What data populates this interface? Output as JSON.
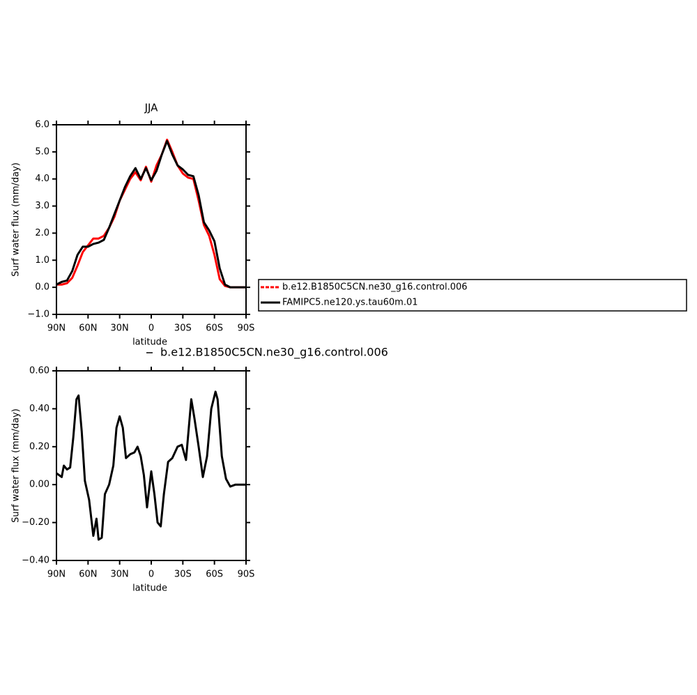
{
  "chart_data": [
    {
      "type": "line",
      "title": "JJA",
      "ylabel": "Surf water flux (mm/day)",
      "xlabel": "latitude",
      "xlim": [
        90,
        -90
      ],
      "xticks": [
        {
          "value": 90,
          "label": "90N"
        },
        {
          "value": 60,
          "label": "60N"
        },
        {
          "value": 30,
          "label": "30N"
        },
        0,
        {
          "value": -30,
          "label": "30S"
        },
        {
          "value": -60,
          "label": "60S"
        },
        {
          "value": -90,
          "label": "90S"
        }
      ],
      "ylim": [
        -1,
        6
      ],
      "yticks": [
        {
          "value": -1,
          "label": "−1.0"
        },
        {
          "value": 0,
          "label": "0.0"
        },
        {
          "value": 1,
          "label": "1.0"
        },
        {
          "value": 2,
          "label": "2.0"
        },
        {
          "value": 3,
          "label": "3.0"
        },
        {
          "value": 4,
          "label": "4.0"
        },
        {
          "value": 5,
          "label": "5.0"
        },
        {
          "value": 6,
          "label": "6.0"
        }
      ],
      "legend": "right",
      "x": [
        90,
        85,
        80,
        75,
        70,
        65,
        60,
        55,
        50,
        45,
        40,
        35,
        30,
        25,
        20,
        15,
        10,
        5,
        0,
        -5,
        -10,
        -15,
        -20,
        -25,
        -30,
        -35,
        -40,
        -45,
        -50,
        -55,
        -60,
        -65,
        -70,
        -75,
        -80,
        -85,
        -90
      ],
      "series": [
        {
          "name": "b.e12.B1850C5CN.ne30_g16.control.006",
          "color": "#ff0000",
          "values": [
            0.1,
            0.1,
            0.15,
            0.35,
            0.8,
            1.3,
            1.55,
            1.8,
            1.8,
            1.9,
            2.2,
            2.6,
            3.2,
            3.6,
            4.0,
            4.25,
            3.95,
            4.45,
            3.9,
            4.5,
            4.9,
            5.45,
            5.0,
            4.5,
            4.2,
            4.05,
            4.0,
            3.2,
            2.3,
            1.9,
            1.2,
            0.3,
            0.05,
            0.0,
            0.0,
            0.0,
            0.0
          ]
        },
        {
          "name": "FAMIPC5.ne120.ys.tau60m.01",
          "color": "#000000",
          "values": [
            0.1,
            0.2,
            0.25,
            0.6,
            1.2,
            1.5,
            1.5,
            1.6,
            1.65,
            1.75,
            2.2,
            2.7,
            3.2,
            3.7,
            4.1,
            4.4,
            4.0,
            4.4,
            3.95,
            4.3,
            4.9,
            5.4,
            4.9,
            4.5,
            4.35,
            4.15,
            4.1,
            3.4,
            2.4,
            2.1,
            1.7,
            0.7,
            0.1,
            0.0,
            0.0,
            0.0,
            0.0
          ]
        }
      ]
    },
    {
      "type": "line",
      "title": "b.e12.B1850C5CN.ne30_g16.control.006",
      "ylabel": "Surf water flux (mm/day)",
      "xlabel": "latitude",
      "xlim": [
        90,
        -90
      ],
      "xticks": [
        {
          "value": 90,
          "label": "90N"
        },
        {
          "value": 60,
          "label": "60N"
        },
        {
          "value": 30,
          "label": "30N"
        },
        0,
        {
          "value": -30,
          "label": "30S"
        },
        {
          "value": -60,
          "label": "60S"
        },
        {
          "value": -90,
          "label": "90S"
        }
      ],
      "ylim": [
        -0.4,
        0.6
      ],
      "yticks": [
        {
          "value": -0.4,
          "label": "−0.40"
        },
        {
          "value": -0.2,
          "label": "−0.20"
        },
        {
          "value": 0,
          "label": "0.00"
        },
        {
          "value": 0.2,
          "label": "0.20"
        },
        {
          "value": 0.4,
          "label": "0.40"
        },
        {
          "value": 0.6,
          "label": "0.60"
        }
      ],
      "x": [
        90,
        85,
        83,
        80,
        77,
        74,
        71,
        69,
        66,
        63,
        59,
        55,
        52,
        50,
        47,
        44,
        40,
        36,
        33,
        30,
        27,
        24,
        20,
        16,
        13,
        10,
        7,
        4,
        0,
        -3,
        -6,
        -9,
        -12,
        -16,
        -20,
        -25,
        -29,
        -33,
        -38,
        -41,
        -45,
        -49,
        -53,
        -57,
        -61,
        -63,
        -67,
        -71,
        -75,
        -80,
        -90
      ],
      "series": [
        {
          "color": "#000000",
          "values": [
            0.06,
            0.04,
            0.1,
            0.08,
            0.09,
            0.25,
            0.45,
            0.47,
            0.28,
            0.02,
            -0.08,
            -0.27,
            -0.18,
            -0.29,
            -0.28,
            -0.05,
            0.0,
            0.1,
            0.3,
            0.36,
            0.3,
            0.14,
            0.16,
            0.17,
            0.2,
            0.15,
            0.05,
            -0.12,
            0.07,
            -0.05,
            -0.2,
            -0.22,
            -0.05,
            0.12,
            0.14,
            0.2,
            0.21,
            0.13,
            0.45,
            0.35,
            0.2,
            0.04,
            0.15,
            0.4,
            0.49,
            0.45,
            0.15,
            0.03,
            -0.01,
            0.0,
            0.0
          ]
        }
      ]
    }
  ]
}
